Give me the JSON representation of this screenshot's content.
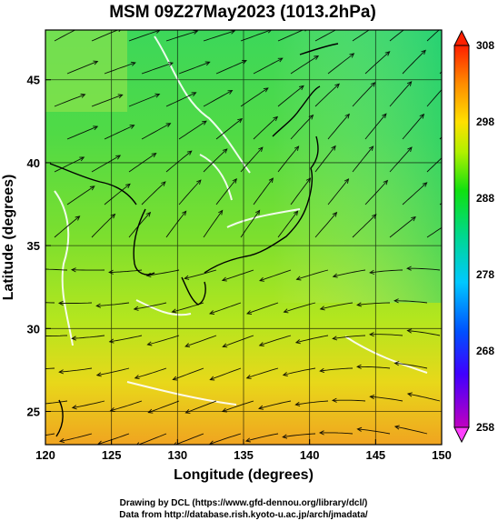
{
  "title": "MSM 09Z27May2023 (1013.2hPa)",
  "x_axis": {
    "label": "Longitude (degrees)",
    "ticks": [
      "120",
      "125",
      "130",
      "135",
      "140",
      "145",
      "150"
    ],
    "range": [
      120,
      150
    ]
  },
  "y_axis": {
    "label": "Latitude  (degrees)",
    "ticks": [
      "25",
      "30",
      "35",
      "40",
      "45"
    ],
    "range": [
      23,
      48
    ]
  },
  "colorbar": {
    "ticks": [
      "258",
      "268",
      "278",
      "288",
      "298",
      "308"
    ],
    "range": [
      258,
      308
    ],
    "colors": [
      "#c000c0",
      "#0000ff",
      "#00c8ff",
      "#00d890",
      "#00e000",
      "#c8f000",
      "#ffe000",
      "#ff8c00",
      "#ff2000"
    ]
  },
  "credits": {
    "line1": "Drawing by DCL (https://www.gfd-dennou.org/library/dcl/)",
    "line2": "Data from http://database.rish.kyoto-u.ac.jp/arch/jmadata/"
  }
}
